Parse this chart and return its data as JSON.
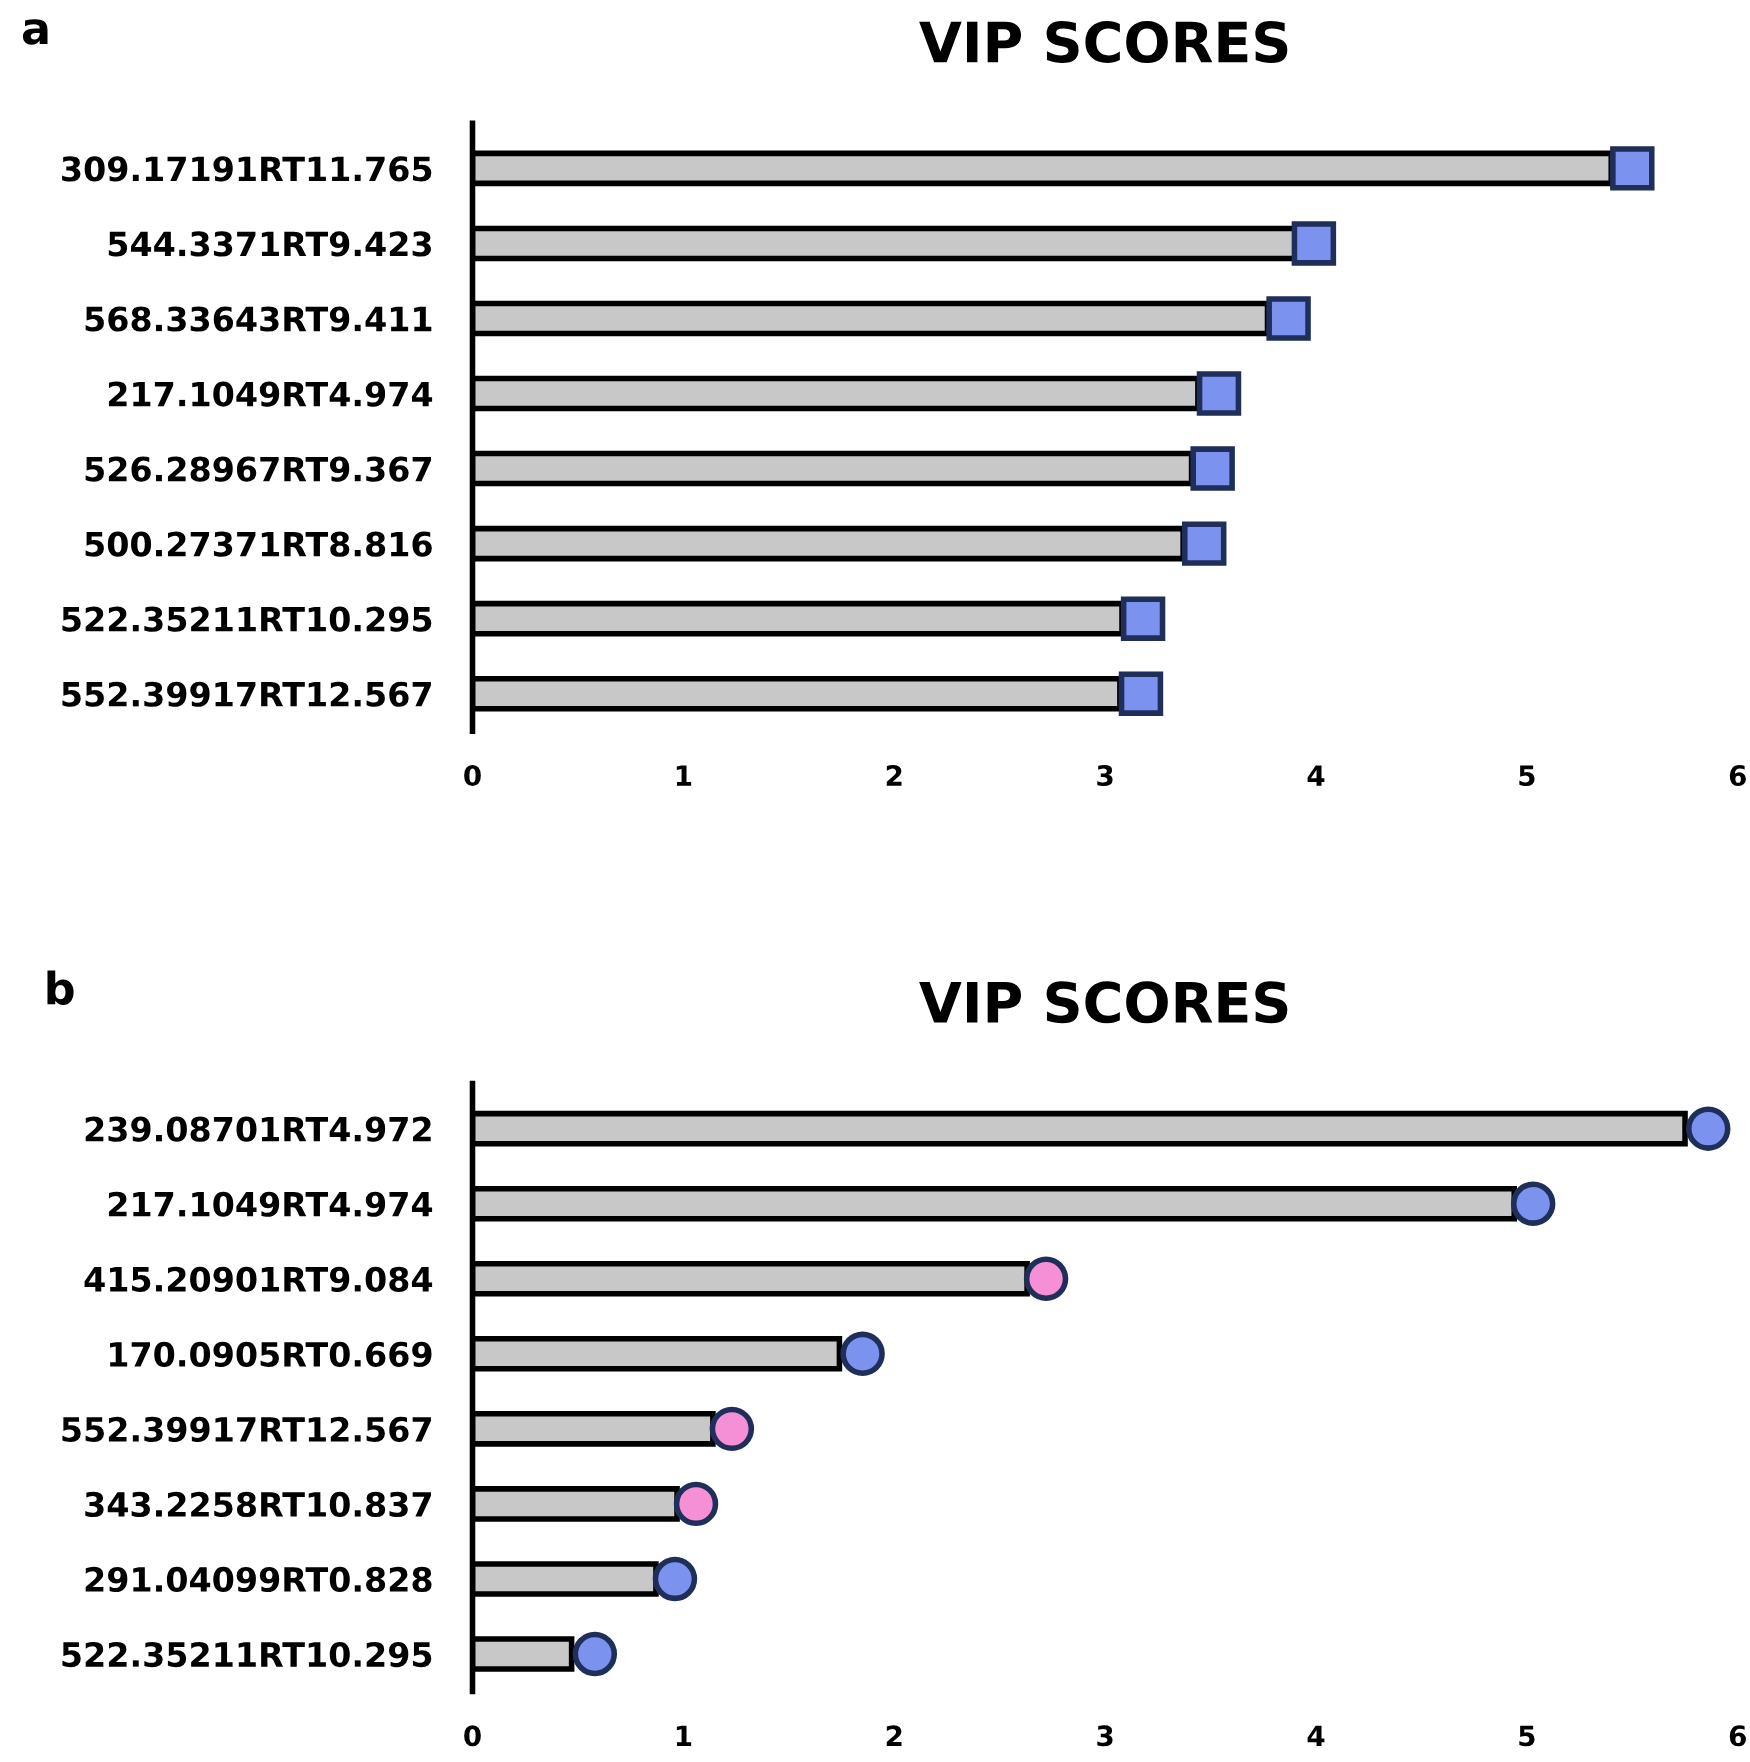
{
  "chart_data": [
    {
      "type": "bar",
      "orientation": "horizontal",
      "title": "VIP SCORES",
      "annotations": [
        "a"
      ],
      "categories": [
        "309.17191RT11.765",
        "544.3371RT9.423",
        "568.33643RT9.411",
        "217.1049RT4.974",
        "526.28967RT9.367",
        "500.27371RT8.816",
        "522.35211RT10.295",
        "552.39917RT12.567"
      ],
      "series": [
        {
          "color": "#c8c8c8",
          "values": [
            5.4,
            3.9,
            3.77,
            3.44,
            3.41,
            3.37,
            3.08,
            3.07
          ]
        },
        {
          "type": "scatter",
          "marker": "square",
          "colors": [
            "#7b93ee",
            "#7b93ee",
            "#7b93ee",
            "#7b93ee",
            "#7b93ee",
            "#7b93ee",
            "#7b93ee",
            "#7b93ee"
          ],
          "values": [
            5.5,
            3.99,
            3.87,
            3.54,
            3.51,
            3.47,
            3.18,
            3.17
          ]
        }
      ],
      "xlim": [
        0,
        6
      ],
      "xticks": [
        0,
        1,
        2,
        3,
        4,
        5,
        6
      ],
      "grid": false
    },
    {
      "type": "bar",
      "orientation": "horizontal",
      "title": "VIP SCORES",
      "annotations": [
        "b"
      ],
      "categories": [
        "239.08701RT4.972",
        "217.1049RT4.974",
        "415.20901RT9.084",
        "170.0905RT0.669",
        "552.39917RT12.567",
        "343.2258RT10.837",
        "291.04099RT0.828",
        "522.35211RT10.295"
      ],
      "series": [
        {
          "color": "#c8c8c8",
          "values": [
            5.75,
            4.94,
            2.63,
            1.74,
            1.14,
            0.97,
            0.87,
            0.47
          ]
        },
        {
          "type": "scatter",
          "marker": "circle",
          "colors": [
            "#7b93ee",
            "#7b93ee",
            "#f590d6",
            "#7b93ee",
            "#f590d6",
            "#f590d6",
            "#7b93ee",
            "#7b93ee"
          ],
          "values": [
            5.86,
            5.03,
            2.72,
            1.85,
            1.23,
            1.06,
            0.96,
            0.58
          ]
        }
      ],
      "xlim": [
        0,
        6
      ],
      "xticks": [
        0,
        1,
        2,
        3,
        4,
        5,
        6
      ],
      "grid": false
    }
  ]
}
